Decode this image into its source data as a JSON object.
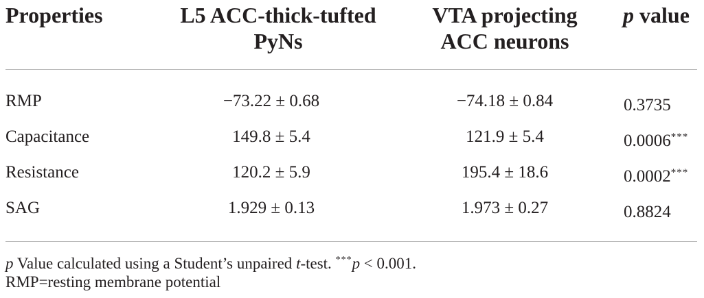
{
  "header": {
    "properties": "Properties",
    "col1_line1": "L5 ACC-thick-tufted",
    "col1_line2": "PyNs",
    "col2_line1": "VTA projecting",
    "col2_line2": "ACC neurons",
    "pvalue_p": "p",
    "pvalue_rest": " value"
  },
  "rows": [
    {
      "label": "RMP",
      "col1": "−73.22 ± 0.68",
      "col2": "−74.18 ± 0.84",
      "p": "0.3735",
      "stars": ""
    },
    {
      "label": "Capacitance",
      "col1": "149.8 ± 5.4",
      "col2": "121.9 ± 5.4",
      "p": "0.0006",
      "stars": "***"
    },
    {
      "label": "Resistance",
      "col1": "120.2 ± 5.9",
      "col2": "195.4 ± 18.6",
      "p": "0.0002",
      "stars": "***"
    },
    {
      "label": "SAG",
      "col1": "1.929 ± 0.13",
      "col2": "1.973 ± 0.27",
      "p": "0.8824",
      "stars": ""
    }
  ],
  "footnote": {
    "p_italic": "p",
    "text_a": " Value calculated using a Student’s unpaired ",
    "t_italic": "t",
    "text_b": "-test. ",
    "stars": "***",
    "p2_italic": "p",
    "text_c": " < 0.001.",
    "abbreviation": "RMP=resting membrane potential"
  }
}
